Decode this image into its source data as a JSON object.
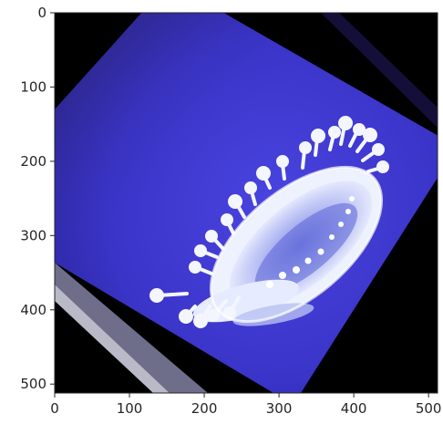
{
  "image": {
    "description_icon": "milk-crown-splash-image",
    "axis_extent": {
      "x": [
        0,
        512
      ],
      "y": [
        0,
        512
      ]
    },
    "x_ticks": [
      0,
      100,
      200,
      300,
      400,
      500
    ],
    "y_ticks": [
      0,
      100,
      200,
      300,
      400,
      500
    ],
    "x_tick_labels": [
      "0",
      "100",
      "200",
      "300",
      "400",
      "500"
    ],
    "y_tick_labels": [
      "0",
      "100",
      "200",
      "300",
      "400",
      "500"
    ],
    "colors": {
      "background_corners": "#000000",
      "surface_blue": "#3a34c8",
      "surface_blue_dark": "#231c7a",
      "milk": "#eef2ff",
      "milk_shadow": "#9aa3e8",
      "axis": "#262626",
      "page": "#ffffff"
    }
  }
}
